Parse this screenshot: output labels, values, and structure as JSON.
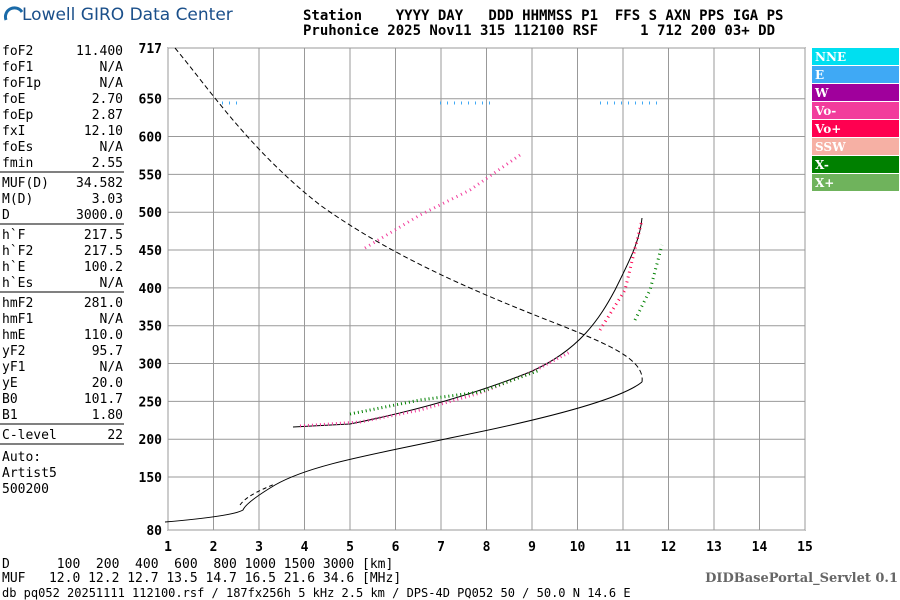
{
  "header": {
    "title": "Lowell GIRO Data Center",
    "line1": "Station    YYYY DAY   DDD HHMMSS P1  FFS S AXN PPS IGA PS",
    "line2": "Pruhonice 2025 Nov11 315 112100 RSF     1 712 200 03+ DD"
  },
  "params": [
    [
      [
        "foF2",
        "11.400"
      ],
      [
        "foF1",
        "N/A"
      ],
      [
        "foF1p",
        "N/A"
      ],
      [
        "foE",
        "2.70"
      ],
      [
        "foEp",
        "2.87"
      ],
      [
        "fxI",
        "12.10"
      ],
      [
        "foEs",
        "N/A"
      ],
      [
        "fmin",
        "2.55"
      ]
    ],
    [
      [
        "MUF(D)",
        "34.582"
      ],
      [
        "M(D)",
        "3.03"
      ],
      [
        "D",
        "3000.0"
      ]
    ],
    [
      [
        "h`F",
        "217.5"
      ],
      [
        "h`F2",
        "217.5"
      ],
      [
        "h`E",
        "100.2"
      ],
      [
        "h`Es",
        "N/A"
      ]
    ],
    [
      [
        "hmF2",
        "281.0"
      ],
      [
        "hmF1",
        "N/A"
      ],
      [
        "hmE",
        "110.0"
      ],
      [
        "yF2",
        "95.7"
      ],
      [
        "yF1",
        "N/A"
      ],
      [
        "yE",
        "20.0"
      ],
      [
        "B0",
        "101.7"
      ],
      [
        "B1",
        "1.80"
      ]
    ],
    [
      [
        "C-level",
        "22"
      ]
    ]
  ],
  "autoscaling": [
    "Auto:",
    "Artist5",
    "500200"
  ],
  "ionogram": {
    "xlim": [
      1,
      15
    ],
    "ylim": [
      80,
      717
    ],
    "xticks": [
      1,
      2,
      3,
      4,
      5,
      6,
      7,
      8,
      9,
      10,
      11,
      12,
      13,
      14,
      15
    ],
    "yticks": [
      80,
      150,
      200,
      250,
      300,
      350,
      400,
      450,
      500,
      550,
      600,
      650,
      717
    ],
    "grid": true
  },
  "legend": [
    {
      "name": "NNE",
      "color": "#00dff0"
    },
    {
      "name": "E",
      "color": "#3fa9f5"
    },
    {
      "name": "W",
      "color": "#a0009c"
    },
    {
      "name": "Vo-",
      "color": "#f23c9c"
    },
    {
      "name": "Vo+",
      "color": "#ff0050"
    },
    {
      "name": "SSW",
      "color": "#f6b0a4"
    },
    {
      "name": "X-",
      "color": "#008000"
    },
    {
      "name": "X+",
      "color": "#6fb35c"
    }
  ],
  "footer": {
    "d_row": "D      100  200  400  600  800 1000 1500 3000 [km]",
    "muf_row": "MUF   12.0 12.2 12.7 13.5 14.7 16.5 21.6 34.6 [MHz]",
    "portal": "DIDBasePortal_Servlet 0.1",
    "db_line": "db pq052 20251111 112100.rsf / 187fx256h 5 kHz 2.5 km / DPS-4D PQ052 50 / 50.0 N 14.6 E"
  }
}
